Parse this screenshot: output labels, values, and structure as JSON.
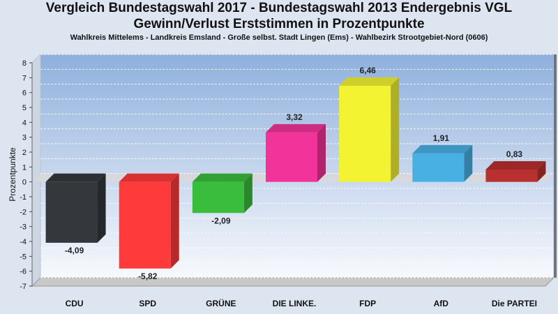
{
  "chart_data": {
    "type": "bar",
    "title": [
      "Vergleich Bundestagswahl 2017 - Bundestagswahl 2013 Endergebnis VGL",
      "Gewinn/Verlust Erststimmen in Prozentpunkte"
    ],
    "subtitle": "Wahlkreis Mittelems - Landkreis Emsland - Große selbst. Stadt Lingen (Ems) - Wahlbezirk Strootgebiet-Nord (0606)",
    "ylabel": "Prozentpunkte",
    "xlabel": "",
    "ylim": [
      -7,
      8
    ],
    "yticks": [
      "8",
      "7",
      "6",
      "5",
      "4",
      "3",
      "2",
      "1",
      "0",
      "-1",
      "-2",
      "-3",
      "-4",
      "-5",
      "-6",
      "-7"
    ],
    "grid": true,
    "categories": [
      "CDU",
      "SPD",
      "GRÜNE",
      "DIE LINKE.",
      "FDP",
      "AfD",
      "Die PARTEI"
    ],
    "values": [
      -4.09,
      -5.82,
      -2.09,
      3.32,
      6.46,
      1.91,
      0.83
    ],
    "value_labels": [
      "-4,09",
      "-5,82",
      "-2,09",
      "3,32",
      "6,46",
      "1,91",
      "0,83"
    ],
    "colors": [
      "#34383c",
      "#ff3a3a",
      "#3abd3c",
      "#f23399",
      "#f3f331",
      "#49b0e4",
      "#b8302f"
    ]
  }
}
